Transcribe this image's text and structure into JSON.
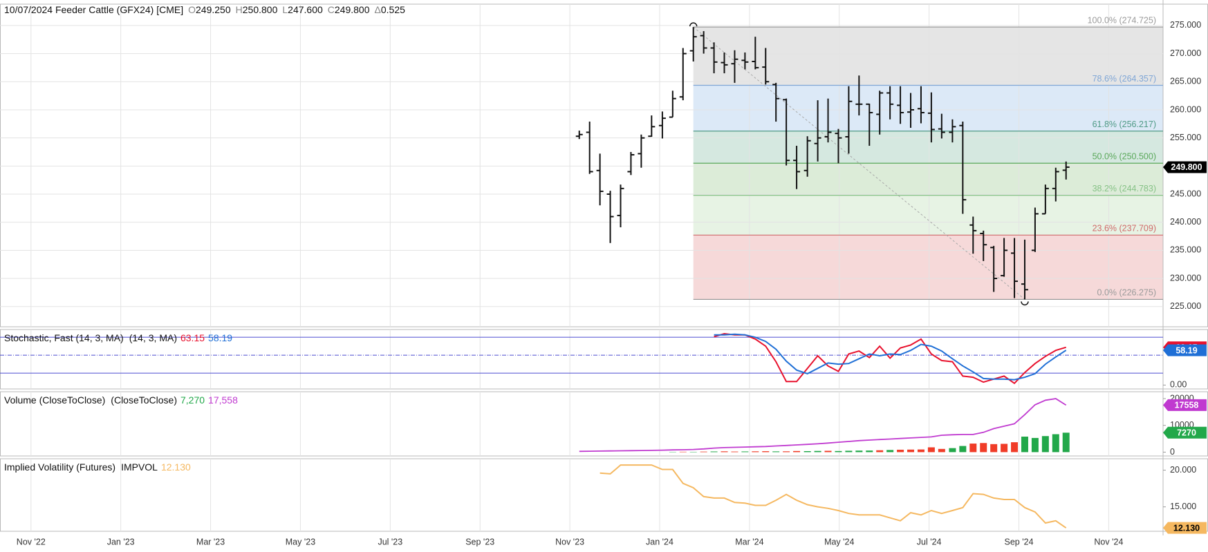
{
  "chart_data": [
    {
      "type": "ohlc",
      "title": "10/07/2024 Feeder Cattle (GFX24) [CME]",
      "quote": [
        {
          "label": "O",
          "value": "249.250"
        },
        {
          "label": "H",
          "value": "250.800"
        },
        {
          "label": "L",
          "value": "247.600"
        },
        {
          "label": "C",
          "value": "249.800"
        },
        {
          "label": "Δ",
          "value": "0.525"
        }
      ],
      "x": [
        12.21,
        12.44,
        12.67,
        12.9,
        13.13,
        13.36,
        13.59,
        13.82,
        14.06,
        14.29,
        14.52,
        14.75,
        14.98,
        15.21,
        15.44,
        15.67,
        15.9,
        16.13,
        16.36,
        16.59,
        16.82,
        17.05,
        17.29,
        17.52,
        17.75,
        17.98,
        18.21,
        18.44,
        18.67,
        18.9,
        19.13,
        19.36,
        19.59,
        19.82,
        20.05,
        20.28,
        20.52,
        20.75,
        20.98,
        21.21,
        21.44,
        21.67,
        21.9,
        22.13,
        22.36,
        22.59,
        22.82,
        23.05
      ],
      "open": [
        255.3,
        256.0,
        249.2,
        245.0,
        241.2,
        249.0,
        252.2,
        255.3,
        257.2,
        258.7,
        262.3,
        270.5,
        273.2,
        271.0,
        268.4,
        268.2,
        268.8,
        268.6,
        267.6,
        264.5,
        261.8,
        251.0,
        249.2,
        254.0,
        255.2,
        255.8,
        255.2,
        261.0,
        261.0,
        259.2,
        263.0,
        260.8,
        259.6,
        260.2,
        259.4,
        256.6,
        256.0,
        257.2,
        239.5,
        238.0,
        235.5,
        230.5,
        234.5,
        229.0,
        235.0,
        241.5,
        246.0,
        249.25
      ],
      "high": [
        256.3,
        257.9,
        252.2,
        245.6,
        246.7,
        252.5,
        255.6,
        259.0,
        259.7,
        263.4,
        271.0,
        274.725,
        274.0,
        272.0,
        270.2,
        270.6,
        270.2,
        273.0,
        271.0,
        264.8,
        262.0,
        253.6,
        255.3,
        261.7,
        262.0,
        256.6,
        264.2,
        266.1,
        261.1,
        263.4,
        264.2,
        264.2,
        263.0,
        264.2,
        263.1,
        259.3,
        258.3,
        257.9,
        241.0,
        238.5,
        235.8,
        237.2,
        237.2,
        236.9,
        242.6,
        246.7,
        249.7,
        250.8
      ],
      "low": [
        254.8,
        248.6,
        243.0,
        236.3,
        239.1,
        248.4,
        249.7,
        255.2,
        254.9,
        258.7,
        261.7,
        268.6,
        270.0,
        266.5,
        266.5,
        264.8,
        267.2,
        267.2,
        264.5,
        257.9,
        250.1,
        245.9,
        248.1,
        250.8,
        254.2,
        250.5,
        252.2,
        259.0,
        253.6,
        255.6,
        258.3,
        257.5,
        256.8,
        257.6,
        254.2,
        254.9,
        254.2,
        241.5,
        234.4,
        233.1,
        227.6,
        230.3,
        226.5,
        226.275,
        234.7,
        241.5,
        243.7,
        247.6
      ],
      "close": [
        255.6,
        249.0,
        245.5,
        241.0,
        246.0,
        252.0,
        255.0,
        257.0,
        258.5,
        262.0,
        270.0,
        273.0,
        271.0,
        268.5,
        268.0,
        269.0,
        268.5,
        267.5,
        265.0,
        262.0,
        251.0,
        249.0,
        254.5,
        255.0,
        256.0,
        255.0,
        261.5,
        261.0,
        259.5,
        263.0,
        261.0,
        259.5,
        260.0,
        259.5,
        256.5,
        256.0,
        257.0,
        244.0,
        238.5,
        236.0,
        230.0,
        235.0,
        229.5,
        228.0,
        241.5,
        246.0,
        249.0,
        249.8
      ],
      "color": "#111111",
      "xlim": [
        -0.69,
        25.21
      ],
      "xticks": [
        {
          "value": 0,
          "label": "Nov '22"
        },
        {
          "value": 2,
          "label": "Jan '23"
        },
        {
          "value": 4,
          "label": "Mar '23"
        },
        {
          "value": 6,
          "label": "May '23"
        },
        {
          "value": 8,
          "label": "Jul '23"
        },
        {
          "value": 10,
          "label": "Sep '23"
        },
        {
          "value": 12,
          "label": "Nov '23"
        },
        {
          "value": 14,
          "label": "Jan '24"
        },
        {
          "value": 16,
          "label": "Mar '24"
        },
        {
          "value": 18,
          "label": "May '24"
        },
        {
          "value": 20,
          "label": "Jul '24"
        },
        {
          "value": 22,
          "label": "Sep '24"
        },
        {
          "value": 24,
          "label": "Nov '24"
        }
      ],
      "ylim": [
        221.4,
        278.8
      ],
      "yticks": [
        {
          "value": 225,
          "label": "225.000"
        },
        {
          "value": 230,
          "label": "230.000"
        },
        {
          "value": 235,
          "label": "235.000"
        },
        {
          "value": 240,
          "label": "240.000"
        },
        {
          "value": 245,
          "label": "245.000"
        },
        {
          "value": 250,
          "label": "250.000"
        },
        {
          "value": 255,
          "label": "255.000"
        },
        {
          "value": 260,
          "label": "260.000"
        },
        {
          "value": 265,
          "label": "265.000"
        },
        {
          "value": 270,
          "label": "270.000"
        },
        {
          "value": 275,
          "label": "275.000"
        }
      ],
      "grid": true,
      "last_price": {
        "value": 249.8,
        "label": "249.800"
      },
      "fib_levels": [
        {
          "value": 274.725,
          "label": "100.0% (274.725)",
          "color": "#9a9a9a",
          "fill": "#e5e5e5"
        },
        {
          "value": 264.357,
          "label": "78.6% (264.357)",
          "color": "#7fa6d6",
          "fill": "#dce9f7"
        },
        {
          "value": 256.217,
          "label": "61.8% (256.217)",
          "color": "#4f9a86",
          "fill": "#d5e8e0"
        },
        {
          "value": 250.5,
          "label": "50.0% (250.500)",
          "color": "#5aa85a",
          "fill": "#dcecd8"
        },
        {
          "value": 244.783,
          "label": "38.2% (244.783)",
          "color": "#86c286",
          "fill": "#e7f3e4"
        },
        {
          "value": 237.709,
          "label": "23.6% (237.709)",
          "color": "#d06a6a",
          "fill": "#f6d9d9"
        },
        {
          "value": 226.275,
          "label": "0.0% (226.275)",
          "color": "#9a9a9a"
        }
      ],
      "trend_line_color": "#a8a8a8"
    },
    {
      "type": "line",
      "title": "Stochastic, Fast (14, 3, MA)",
      "subtitle": "(14, 3, MA)",
      "ylim": [
        -6.5,
        92.9
      ],
      "yticks": [
        {
          "value": 0,
          "label": "0.00"
        }
      ],
      "levels": [
        80,
        50,
        20
      ],
      "level_color": "#4a4ad0",
      "series": [
        {
          "color": "#e8112d",
          "last_label": "63.15",
          "values": [
            null,
            null,
            null,
            null,
            null,
            null,
            null,
            null,
            null,
            null,
            null,
            null,
            null,
            81,
            86,
            84,
            84,
            77,
            65,
            39,
            6,
            6,
            28,
            49,
            32,
            23,
            52,
            57,
            46,
            65,
            45,
            62,
            67,
            77,
            52,
            41,
            39,
            15,
            13,
            5,
            10,
            15,
            3,
            21,
            36,
            48,
            58,
            63.15
          ]
        },
        {
          "color": "#1f6fd6",
          "last_label": "58.19",
          "values": [
            null,
            null,
            null,
            null,
            null,
            null,
            null,
            null,
            null,
            null,
            null,
            null,
            null,
            84,
            84,
            85,
            84,
            80,
            73,
            60,
            40,
            25,
            19,
            28,
            37,
            35,
            36,
            44,
            52,
            49,
            52,
            51,
            58,
            68,
            65,
            57,
            44,
            32,
            22,
            11,
            10,
            10,
            9,
            13,
            19,
            35,
            47,
            58.19
          ]
        }
      ]
    },
    {
      "type": "bar",
      "title": "Volume (CloseToClose)",
      "subtitle": "(CloseToClose)",
      "ylim": [
        -1430,
        22570
      ],
      "yticks": [
        0,
        10000,
        20000
      ],
      "series": [
        {
          "type": "bar",
          "color": "#22a84a",
          "last_label": "7,270",
          "values": [
            null,
            null,
            null,
            null,
            null,
            null,
            null,
            null,
            null,
            100,
            150,
            120,
            200,
            250,
            300,
            220,
            260,
            300,
            350,
            280,
            300,
            420,
            380,
            450,
            500,
            420,
            520,
            580,
            600,
            700,
            800,
            900,
            950,
            1000,
            1800,
            1200,
            1500,
            2300,
            3200,
            3400,
            3000,
            3100,
            3700,
            5800,
            5300,
            6000,
            6700,
            7270
          ],
          "colors": [
            null,
            null,
            null,
            null,
            null,
            null,
            null,
            null,
            null,
            "#22a84a",
            "#f03c28",
            "#22a84a",
            "#f03c28",
            "#22a84a",
            "#f03c28",
            "#f03c28",
            "#22a84a",
            "#f03c28",
            "#f03c28",
            "#22a84a",
            "#f03c28",
            "#f03c28",
            "#22a84a",
            "#22a84a",
            "#f03c28",
            "#22a84a",
            "#22a84a",
            "#22a84a",
            "#22a84a",
            "#f03c28",
            "#22a84a",
            "#f03c28",
            "#f03c28",
            "#f03c28",
            "#f03c28",
            "#f03c28",
            "#22a84a",
            "#22a84a",
            "#f03c28",
            "#f03c28",
            "#f03c28",
            "#f03c28",
            "#f03c28",
            "#22a84a",
            "#22a84a",
            "#22a84a",
            "#22a84a",
            "#22a84a"
          ]
        },
        {
          "type": "line",
          "color": "#c03ad0",
          "last_label": "17,558",
          "values": [
            300,
            350,
            400,
            450,
            500,
            550,
            600,
            650,
            750,
            850,
            900,
            1000,
            1200,
            1500,
            1700,
            1800,
            1900,
            2000,
            2100,
            2300,
            2500,
            2700,
            2900,
            3100,
            3400,
            3700,
            4000,
            4300,
            4500,
            4700,
            4900,
            5100,
            5300,
            5500,
            5700,
            6300,
            6500,
            6600,
            6600,
            7400,
            8800,
            9700,
            10600,
            14000,
            17700,
            19400,
            20000,
            17558
          ]
        }
      ]
    },
    {
      "type": "line",
      "title": "Implied Volatility (Futures)",
      "subtitle": "IMPVOL",
      "ylim": [
        11.67,
        21.56
      ],
      "yticks": [
        {
          "value": 15,
          "label": "15.000"
        },
        {
          "value": 20,
          "label": "20.000"
        }
      ],
      "series": [
        {
          "color": "#f5b860",
          "last_label": "12.130",
          "values": [
            null,
            null,
            19.6,
            19.5,
            20.7,
            20.7,
            20.7,
            20.7,
            20.1,
            20.1,
            18.2,
            17.6,
            16.4,
            16.2,
            16.2,
            15.6,
            15.5,
            15.2,
            15.2,
            15.9,
            16.7,
            15.9,
            15.3,
            15.0,
            14.8,
            14.5,
            14.1,
            13.9,
            13.9,
            13.9,
            13.5,
            13.1,
            14.2,
            13.9,
            14.5,
            14.1,
            14.5,
            14.9,
            16.8,
            16.7,
            16.2,
            16.0,
            16.0,
            14.9,
            14.3,
            12.8,
            13.1,
            12.13
          ]
        }
      ]
    }
  ]
}
